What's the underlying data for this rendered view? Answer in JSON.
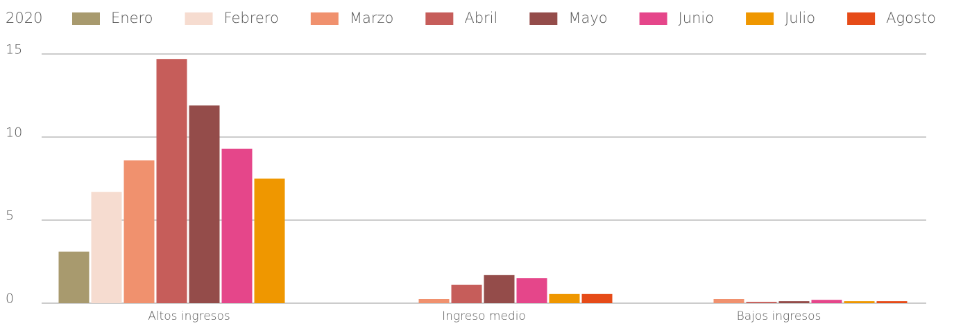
{
  "chart_data": {
    "type": "bar",
    "legend_title": "2020",
    "categories": [
      "Altos ingresos",
      "Ingreso medio",
      "Bajos ingresos"
    ],
    "series": [
      {
        "name": "Enero",
        "color": "#a89a6e",
        "values": [
          3.1,
          null,
          null
        ]
      },
      {
        "name": "Febrero",
        "color": "#f6dcd0",
        "values": [
          6.7,
          null,
          null
        ]
      },
      {
        "name": "Marzo",
        "color": "#f0916e",
        "values": [
          8.6,
          0.25,
          0.25
        ]
      },
      {
        "name": "Abril",
        "color": "#c65d5a",
        "values": [
          14.7,
          1.1,
          0.08
        ]
      },
      {
        "name": "Mayo",
        "color": "#944c4a",
        "values": [
          11.9,
          1.7,
          0.12
        ]
      },
      {
        "name": "Junio",
        "color": "#e5468a",
        "values": [
          9.3,
          1.5,
          0.2
        ]
      },
      {
        "name": "Julio",
        "color": "#ef9700",
        "values": [
          7.5,
          0.55,
          0.12
        ]
      },
      {
        "name": "Agosto",
        "color": "#e64b18",
        "values": [
          null,
          0.55,
          0.12
        ]
      }
    ],
    "ylim": [
      0,
      15
    ],
    "yticks": [
      0,
      5,
      10,
      15
    ],
    "grid": true,
    "legend": "top"
  }
}
